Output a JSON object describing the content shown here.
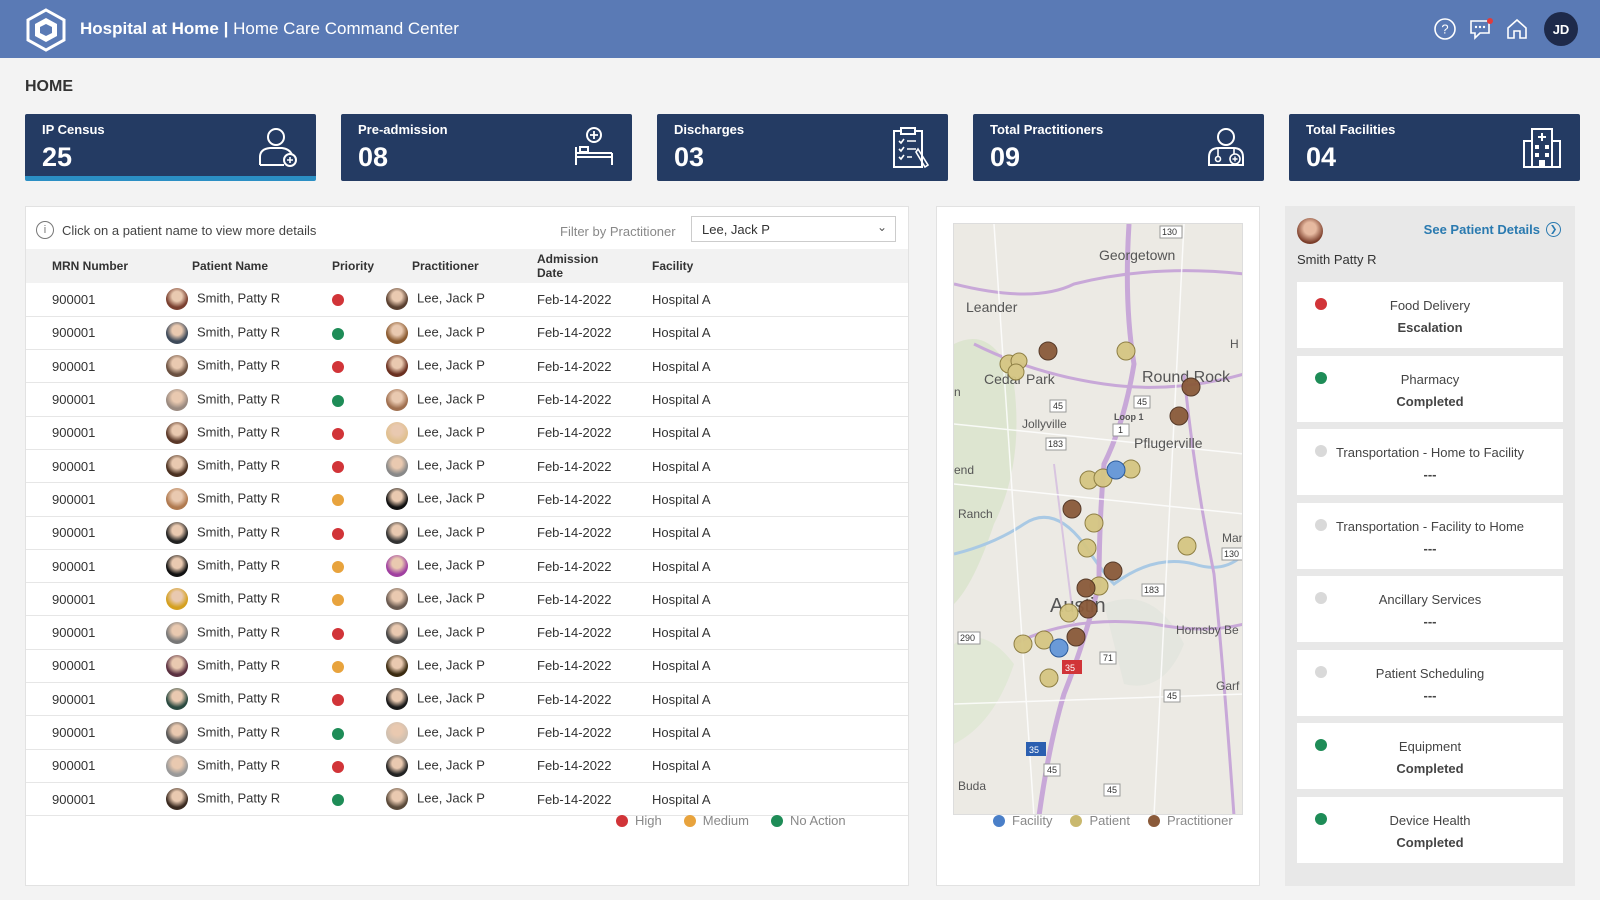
{
  "app": {
    "title": "Hospital at Home",
    "separator": "|",
    "subtitle": "Home Care Command Center",
    "user_initials": "JD",
    "icons": [
      "help-icon",
      "chat-icon",
      "home-icon"
    ]
  },
  "page_title": "HOME",
  "kpis": [
    {
      "label": "IP Census",
      "value": "25",
      "icon": "patient-icon"
    },
    {
      "label": "Pre-admission",
      "value": "08",
      "icon": "hospital-bed-icon"
    },
    {
      "label": "Discharges",
      "value": "03",
      "icon": "clipboard-icon"
    },
    {
      "label": "Total Practitioners",
      "value": "09",
      "icon": "practitioner-icon"
    },
    {
      "label": "Total Facilities",
      "value": "04",
      "icon": "building-icon"
    }
  ],
  "table": {
    "hint": "Click on a patient name to view more details",
    "filter_label": "Filter by Practitioner",
    "filter_value": "Lee, Jack P",
    "columns": [
      "MRN Number",
      "Patient Name",
      "Priority",
      "Practitioner",
      "Admission Date",
      "Facility"
    ],
    "rows": [
      {
        "mrn": "900001",
        "patient": "Smith, Patty R",
        "priority": "High",
        "practitioner": "Lee, Jack P",
        "date": "Feb-14-2022",
        "facility": "Hospital A"
      },
      {
        "mrn": "900001",
        "patient": "Smith, Patty R",
        "priority": "No Action",
        "practitioner": "Lee, Jack P",
        "date": "Feb-14-2022",
        "facility": "Hospital A"
      },
      {
        "mrn": "900001",
        "patient": "Smith, Patty R",
        "priority": "High",
        "practitioner": "Lee, Jack P",
        "date": "Feb-14-2022",
        "facility": "Hospital A"
      },
      {
        "mrn": "900001",
        "patient": "Smith, Patty R",
        "priority": "No Action",
        "practitioner": "Lee, Jack P",
        "date": "Feb-14-2022",
        "facility": "Hospital A"
      },
      {
        "mrn": "900001",
        "patient": "Smith, Patty R",
        "priority": "High",
        "practitioner": "Lee, Jack P",
        "date": "Feb-14-2022",
        "facility": "Hospital A"
      },
      {
        "mrn": "900001",
        "patient": "Smith, Patty R",
        "priority": "High",
        "practitioner": "Lee, Jack P",
        "date": "Feb-14-2022",
        "facility": "Hospital A"
      },
      {
        "mrn": "900001",
        "patient": "Smith, Patty R",
        "priority": "Medium",
        "practitioner": "Lee, Jack P",
        "date": "Feb-14-2022",
        "facility": "Hospital A"
      },
      {
        "mrn": "900001",
        "patient": "Smith, Patty R",
        "priority": "High",
        "practitioner": "Lee, Jack P",
        "date": "Feb-14-2022",
        "facility": "Hospital A"
      },
      {
        "mrn": "900001",
        "patient": "Smith, Patty R",
        "priority": "Medium",
        "practitioner": "Lee, Jack P",
        "date": "Feb-14-2022",
        "facility": "Hospital A"
      },
      {
        "mrn": "900001",
        "patient": "Smith, Patty R",
        "priority": "Medium",
        "practitioner": "Lee, Jack P",
        "date": "Feb-14-2022",
        "facility": "Hospital A"
      },
      {
        "mrn": "900001",
        "patient": "Smith, Patty R",
        "priority": "High",
        "practitioner": "Lee, Jack P",
        "date": "Feb-14-2022",
        "facility": "Hospital A"
      },
      {
        "mrn": "900001",
        "patient": "Smith, Patty R",
        "priority": "Medium",
        "practitioner": "Lee, Jack P",
        "date": "Feb-14-2022",
        "facility": "Hospital A"
      },
      {
        "mrn": "900001",
        "patient": "Smith, Patty R",
        "priority": "High",
        "practitioner": "Lee, Jack P",
        "date": "Feb-14-2022",
        "facility": "Hospital A"
      },
      {
        "mrn": "900001",
        "patient": "Smith, Patty R",
        "priority": "No Action",
        "practitioner": "Lee, Jack P",
        "date": "Feb-14-2022",
        "facility": "Hospital A"
      },
      {
        "mrn": "900001",
        "patient": "Smith, Patty R",
        "priority": "High",
        "practitioner": "Lee, Jack P",
        "date": "Feb-14-2022",
        "facility": "Hospital A"
      },
      {
        "mrn": "900001",
        "patient": "Smith, Patty R",
        "priority": "No Action",
        "practitioner": "Lee, Jack P",
        "date": "Feb-14-2022",
        "facility": "Hospital A"
      }
    ],
    "legend": [
      {
        "label": "High",
        "color": "#d13438"
      },
      {
        "label": "Medium",
        "color": "#e8a33d"
      },
      {
        "label": "No Action",
        "color": "#1e8c57"
      }
    ]
  },
  "map": {
    "labels": [
      "Georgetown",
      "Leander",
      "Cedar Park",
      "Round Rock",
      "Jollyville",
      "Pflugerville",
      "Ranch",
      "Austin",
      "Hornsby Be",
      "Buda",
      "Garf",
      "Man",
      "end",
      "n",
      "H",
      "Loop 1",
      "45",
      "183",
      "130",
      "35",
      "290",
      "71",
      "1"
    ],
    "legend": [
      {
        "label": "Facility",
        "color": "#4a7fc8"
      },
      {
        "label": "Patient",
        "color": "#c9b86e"
      },
      {
        "label": "Practitioner",
        "color": "#8a5a3a"
      }
    ]
  },
  "details": {
    "patient_name": "Smith Patty R",
    "link_label": "See Patient Details",
    "services": [
      {
        "name": "Food Delivery",
        "status": "Escalation",
        "color": "#d13438"
      },
      {
        "name": "Pharmacy",
        "status": "Completed",
        "color": "#1e8c57"
      },
      {
        "name": "Transportation - Home to Facility",
        "status": "---",
        "color": "#d9d9d9"
      },
      {
        "name": "Transportation - Facility to Home",
        "status": "---",
        "color": "#d9d9d9"
      },
      {
        "name": "Ancillary Services",
        "status": "---",
        "color": "#d9d9d9"
      },
      {
        "name": "Patient Scheduling",
        "status": "---",
        "color": "#d9d9d9"
      },
      {
        "name": "Equipment",
        "status": "Completed",
        "color": "#1e8c57"
      },
      {
        "name": "Device Health",
        "status": "Completed",
        "color": "#1e8c57"
      }
    ]
  }
}
